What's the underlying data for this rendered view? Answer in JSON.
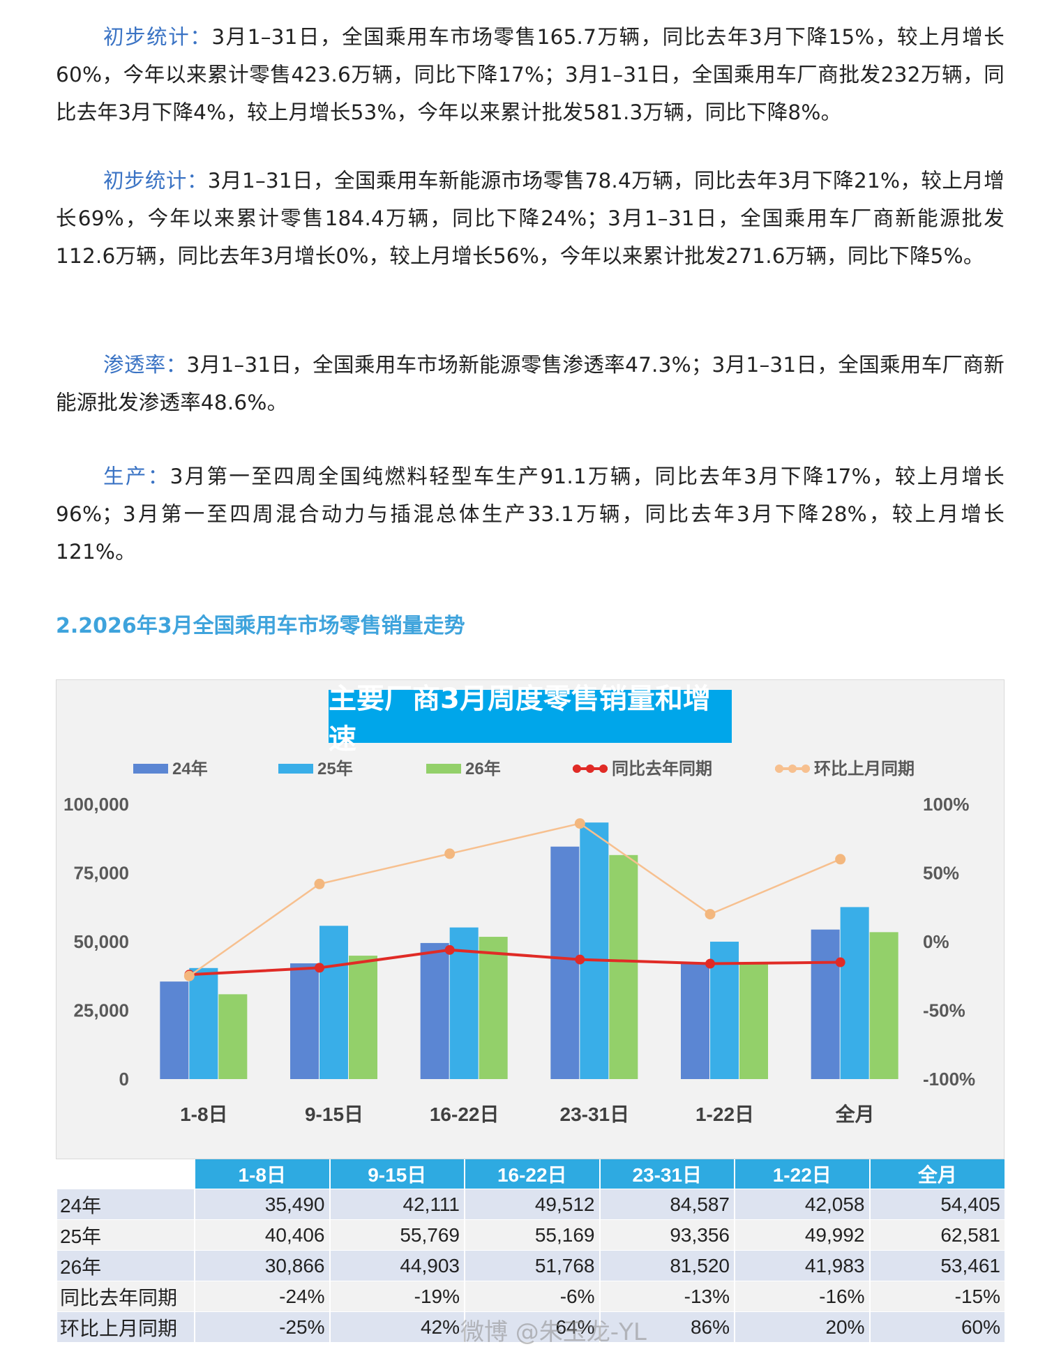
{
  "paragraphs": [
    {
      "lead": "初步统计：",
      "body": "3月1–31日，全国乘用车市场零售165.7万辆，同比去年3月下降15%，较上月增长60%，今年以来累计零售423.6万辆，同比下降17%；3月1–31日，全国乘用车厂商批发232万辆，同比去年3月下降4%，较上月增长53%，今年以来累计批发581.3万辆，同比下降8%。"
    },
    {
      "lead": "初步统计：",
      "body": "3月1–31日，全国乘用车新能源市场零售78.4万辆，同比去年3月下降21%，较上月增长69%，今年以来累计零售184.4万辆，同比下降24%；3月1–31日，全国乘用车厂商新能源批发112.6万辆，同比去年3月增长0%，较上月增长56%，今年以来累计批发271.6万辆，同比下降5%。"
    },
    {
      "lead": "渗透率：",
      "body": "3月1–31日，全国乘用车市场新能源零售渗透率47.3%；3月1–31日，全国乘用车厂商新能源批发渗透率48.6%。"
    },
    {
      "lead": "生产：",
      "body": "3月第一至四周全国纯燃料轻型车生产91.1万辆，同比去年3月下降17%，较上月增长96%；3月第一至四周混合动力与插混总体生产33.1万辆，同比去年3月下降28%，较上月增长121%。"
    }
  ],
  "section_title": "2.2026年3月全国乘用车市场零售销量走势",
  "chart_data": {
    "type": "bar",
    "title": "主要厂商3月周度零售销量和增速",
    "categories": [
      "1-8日",
      "9-15日",
      "16-22日",
      "23-31日",
      "1-22日",
      "全月"
    ],
    "series": [
      {
        "name": "24年",
        "values": [
          35490,
          42111,
          49512,
          84587,
          42058,
          54405
        ],
        "color": "#5b86d3"
      },
      {
        "name": "25年",
        "values": [
          40406,
          55769,
          55169,
          93356,
          49992,
          62581
        ],
        "color": "#39aee8"
      },
      {
        "name": "26年",
        "values": [
          30866,
          44903,
          51768,
          81520,
          41983,
          53461
        ],
        "color": "#93d06a"
      }
    ],
    "line_series": [
      {
        "name": "同比去年同期",
        "values": [
          -24,
          -19,
          -6,
          -13,
          -16,
          -15
        ],
        "color": "#e02b26"
      },
      {
        "name": "环比上月同期",
        "values": [
          -25,
          42,
          64,
          86,
          20,
          60
        ],
        "color": "#f7c08f"
      }
    ],
    "ylim": [
      0,
      100000
    ],
    "yticks": [
      "100,000",
      "75,000",
      "50,000",
      "25,000",
      "0"
    ],
    "ylim_right": [
      -100,
      100
    ],
    "yticks_right": [
      "100%",
      "50%",
      "0%",
      "-50%",
      "-100%"
    ],
    "legend_position": "top"
  },
  "table": {
    "headers": [
      "",
      "1-8日",
      "9-15日",
      "16-22日",
      "23-31日",
      "1-22日",
      "全月"
    ],
    "rows": [
      {
        "label": "24年",
        "cells": [
          "35,490",
          "42,111",
          "49,512",
          "84,587",
          "42,058",
          "54,405"
        ]
      },
      {
        "label": "25年",
        "cells": [
          "40,406",
          "55,769",
          "55,169",
          "93,356",
          "49,992",
          "62,581"
        ]
      },
      {
        "label": "26年",
        "cells": [
          "30,866",
          "44,903",
          "51,768",
          "81,520",
          "41,983",
          "53,461"
        ]
      },
      {
        "label": "同比去年同期",
        "cells": [
          "-24%",
          "-19%",
          "-6%",
          "-13%",
          "-16%",
          "-15%"
        ]
      },
      {
        "label": "环比上月同期",
        "cells": [
          "-25%",
          "42%",
          "64%",
          "86%",
          "20%",
          "60%"
        ]
      }
    ]
  },
  "watermark": "微博 @朱玉龙-YL"
}
